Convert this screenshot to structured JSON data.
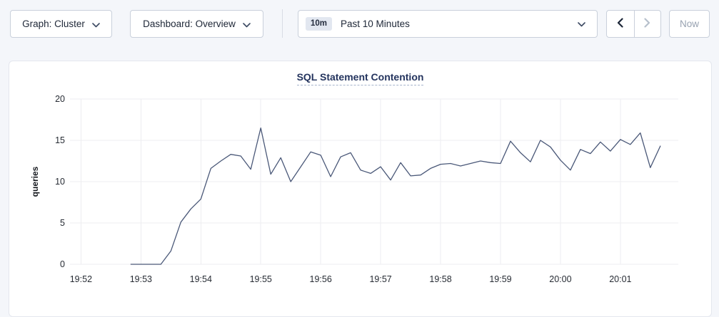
{
  "toolbar": {
    "graph_dropdown_label": "Graph: Cluster",
    "dashboard_dropdown_label": "Dashboard: Overview",
    "time_range": {
      "badge": "10m",
      "label": "Past 10 Minutes"
    },
    "now_button_label": "Now"
  },
  "panel": {
    "title": "SQL Statement Contention"
  },
  "chart_data": {
    "type": "line",
    "title": "SQL Statement Contention",
    "xlabel": "",
    "ylabel": "queries",
    "ylim": [
      0,
      20
    ],
    "y_ticks": [
      0,
      5,
      10,
      15,
      20
    ],
    "x_ticks": [
      "19:52",
      "19:53",
      "19:54",
      "19:55",
      "19:56",
      "19:57",
      "19:58",
      "19:59",
      "20:00",
      "20:01"
    ],
    "x_domain": [
      "19:51:49",
      "20:01:58"
    ],
    "grid": true,
    "legend": "none",
    "line_color": "#4a5878",
    "grid_color": "#ededf0",
    "x": [
      "19:52:50",
      "19:53:00",
      "19:53:10",
      "19:53:20",
      "19:53:30",
      "19:53:40",
      "19:53:50",
      "19:54:00",
      "19:54:10",
      "19:54:20",
      "19:54:30",
      "19:54:40",
      "19:54:50",
      "19:55:00",
      "19:55:10",
      "19:55:20",
      "19:55:30",
      "19:55:40",
      "19:55:50",
      "19:56:00",
      "19:56:10",
      "19:56:20",
      "19:56:30",
      "19:56:40",
      "19:56:50",
      "19:57:00",
      "19:57:10",
      "19:57:20",
      "19:57:30",
      "19:57:40",
      "19:57:50",
      "19:58:00",
      "19:58:10",
      "19:58:20",
      "19:58:30",
      "19:58:40",
      "19:58:50",
      "19:59:00",
      "19:59:10",
      "19:59:20",
      "19:59:30",
      "19:59:40",
      "19:59:50",
      "20:00:00",
      "20:00:10",
      "20:00:20",
      "20:00:30",
      "20:00:40",
      "20:00:50",
      "20:01:00",
      "20:01:10",
      "20:01:20",
      "20:01:30",
      "20:01:40"
    ],
    "values": [
      0,
      0,
      0,
      0,
      1.6,
      5.1,
      6.7,
      7.9,
      11.6,
      12.5,
      13.3,
      13.1,
      11.5,
      16.5,
      10.9,
      12.9,
      10.0,
      11.8,
      13.6,
      13.2,
      10.6,
      13.0,
      13.5,
      11.4,
      11.0,
      11.8,
      10.2,
      12.3,
      10.7,
      10.8,
      11.6,
      12.1,
      12.2,
      11.9,
      12.2,
      12.5,
      12.3,
      12.2,
      14.9,
      13.5,
      12.4,
      15.0,
      14.2,
      12.6,
      11.4,
      13.9,
      13.4,
      14.8,
      13.7,
      15.1,
      14.5,
      15.9,
      11.7,
      14.3
    ]
  },
  "colors": {
    "page_bg": "#f4f6fa",
    "accent_navy": "#24345e",
    "button_border": "#c9d0db",
    "disabled_text": "#98a2b1",
    "tick_text": "#262b33"
  }
}
